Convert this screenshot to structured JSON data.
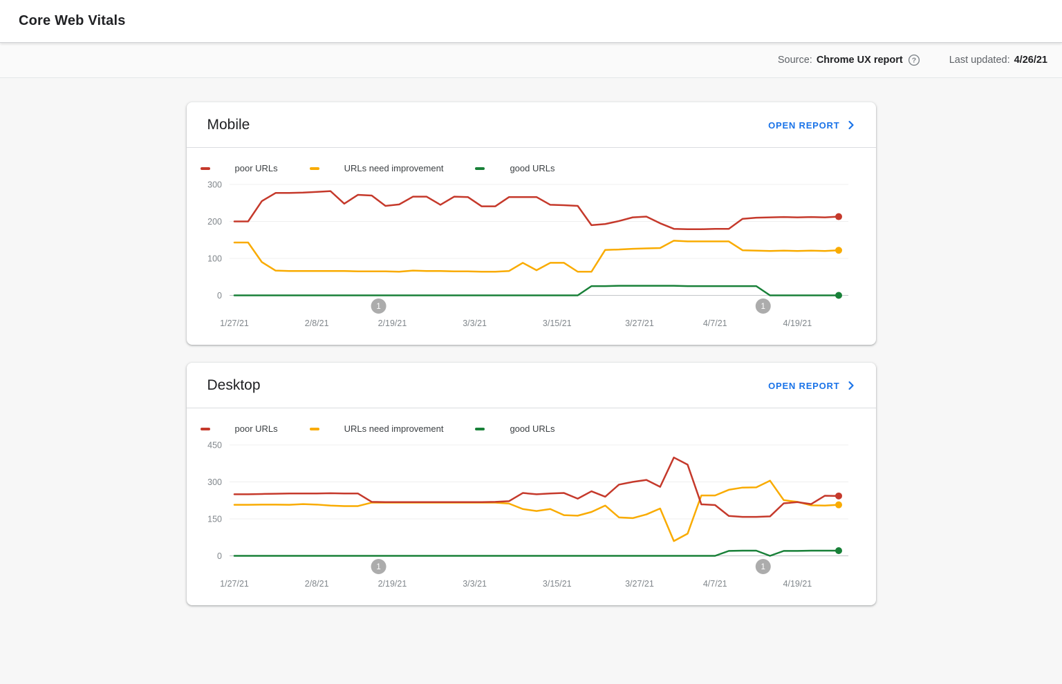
{
  "page": {
    "title": "Core Web Vitals"
  },
  "meta": {
    "source_label": "Source:",
    "source_value": "Chrome UX report",
    "help_icon": "question-circle-icon",
    "updated_label": "Last updated:",
    "updated_value": "4/26/21"
  },
  "colors": {
    "poor": "#c5392b",
    "needs_improvement": "#f9ab00",
    "good": "#188038",
    "link_blue": "#1a73e8",
    "axis_text": "#80868b",
    "grid_faint": "#efefef",
    "zero_line": "#c2c5c9",
    "annotation_gray": "#9e9e9e"
  },
  "legend": {
    "items": [
      {
        "label": "poor URLs",
        "color": "#c5392b"
      },
      {
        "label": "URLs need improvement",
        "color": "#f9ab00"
      },
      {
        "label": "good URLs",
        "color": "#188038"
      }
    ]
  },
  "cards": [
    {
      "title": "Mobile",
      "action_label": "OPEN REPORT"
    },
    {
      "title": "Desktop",
      "action_label": "OPEN REPORT"
    }
  ],
  "chart_data": [
    {
      "type": "line",
      "device": "Mobile",
      "ylim": [
        0,
        300
      ],
      "y_ticks": [
        0,
        100,
        200,
        300
      ],
      "x_tick_labels": [
        "1/27/21",
        "2/8/21",
        "2/19/21",
        "3/3/21",
        "3/15/21",
        "3/27/21",
        "4/7/21",
        "4/19/21"
      ],
      "x_tick_days": [
        0,
        12,
        23,
        35,
        47,
        59,
        70,
        82
      ],
      "sample_days": [
        0,
        2,
        4,
        6,
        8,
        10,
        12,
        14,
        16,
        18,
        20,
        22,
        24,
        26,
        28,
        30,
        32,
        34,
        36,
        38,
        40,
        42,
        44,
        46,
        48,
        50,
        52,
        54,
        56,
        58,
        60,
        62,
        64,
        66,
        68,
        70,
        72,
        74,
        76,
        78,
        80,
        82,
        84,
        86,
        88
      ],
      "sample_dates": [
        "1/27/21",
        "1/29/21",
        "1/31/21",
        "2/2/21",
        "2/4/21",
        "2/6/21",
        "2/8/21",
        "2/10/21",
        "2/12/21",
        "2/14/21",
        "2/16/21",
        "2/18/21",
        "2/20/21",
        "2/22/21",
        "2/24/21",
        "2/26/21",
        "2/28/21",
        "3/2/21",
        "3/4/21",
        "3/6/21",
        "3/8/21",
        "3/10/21",
        "3/12/21",
        "3/14/21",
        "3/16/21",
        "3/18/21",
        "3/20/21",
        "3/22/21",
        "3/24/21",
        "3/26/21",
        "3/28/21",
        "3/30/21",
        "4/1/21",
        "4/3/21",
        "4/5/21",
        "4/7/21",
        "4/9/21",
        "4/11/21",
        "4/13/21",
        "4/15/21",
        "4/17/21",
        "4/19/21",
        "4/21/21",
        "4/23/21",
        "4/25/21"
      ],
      "series": [
        {
          "name": "poor URLs",
          "color": "#c5392b",
          "values": [
            200,
            200,
            255,
            277,
            277,
            278,
            280,
            282,
            248,
            272,
            270,
            242,
            246,
            267,
            267,
            245,
            267,
            266,
            241,
            241,
            266,
            266,
            266,
            245,
            244,
            242,
            190,
            193,
            201,
            211,
            213,
            195,
            180,
            179,
            179,
            180,
            180,
            207,
            210,
            211,
            212,
            211,
            212,
            211,
            213
          ]
        },
        {
          "name": "URLs need improvement",
          "color": "#f9ab00",
          "values": [
            143,
            143,
            90,
            67,
            66,
            66,
            66,
            66,
            66,
            65,
            65,
            65,
            64,
            67,
            66,
            66,
            65,
            65,
            64,
            64,
            66,
            88,
            68,
            88,
            88,
            64,
            64,
            123,
            124,
            126,
            127,
            128,
            148,
            146,
            146,
            146,
            146,
            122,
            121,
            120,
            121,
            120,
            121,
            120,
            122
          ]
        },
        {
          "name": "good URLs",
          "color": "#188038",
          "values": [
            0,
            0,
            0,
            0,
            0,
            0,
            0,
            0,
            0,
            0,
            0,
            0,
            0,
            0,
            0,
            0,
            0,
            0,
            0,
            0,
            0,
            0,
            0,
            0,
            0,
            0,
            25,
            25,
            26,
            26,
            26,
            26,
            26,
            25,
            25,
            25,
            25,
            25,
            25,
            0,
            0,
            0,
            0,
            0,
            0
          ]
        }
      ],
      "annotations": [
        {
          "label": "1",
          "day": 21
        },
        {
          "label": "1",
          "day": 77
        }
      ]
    },
    {
      "type": "line",
      "device": "Desktop",
      "ylim": [
        0,
        450
      ],
      "y_ticks": [
        0,
        150,
        300,
        450
      ],
      "x_tick_labels": [
        "1/27/21",
        "2/8/21",
        "2/19/21",
        "3/3/21",
        "3/15/21",
        "3/27/21",
        "4/7/21",
        "4/19/21"
      ],
      "x_tick_days": [
        0,
        12,
        23,
        35,
        47,
        59,
        70,
        82
      ],
      "sample_days": [
        0,
        2,
        4,
        6,
        8,
        10,
        12,
        14,
        16,
        18,
        20,
        22,
        24,
        26,
        28,
        30,
        32,
        34,
        36,
        38,
        40,
        42,
        44,
        46,
        48,
        50,
        52,
        54,
        56,
        58,
        60,
        62,
        64,
        66,
        68,
        70,
        72,
        74,
        76,
        78,
        80,
        82,
        84,
        86,
        88
      ],
      "sample_dates": [
        "1/27/21",
        "1/29/21",
        "1/31/21",
        "2/2/21",
        "2/4/21",
        "2/6/21",
        "2/8/21",
        "2/10/21",
        "2/12/21",
        "2/14/21",
        "2/16/21",
        "2/18/21",
        "2/20/21",
        "2/22/21",
        "2/24/21",
        "2/26/21",
        "2/28/21",
        "3/2/21",
        "3/4/21",
        "3/6/21",
        "3/8/21",
        "3/10/21",
        "3/12/21",
        "3/14/21",
        "3/16/21",
        "3/18/21",
        "3/20/21",
        "3/22/21",
        "3/24/21",
        "3/26/21",
        "3/28/21",
        "3/30/21",
        "4/1/21",
        "4/3/21",
        "4/5/21",
        "4/7/21",
        "4/9/21",
        "4/11/21",
        "4/13/21",
        "4/15/21",
        "4/17/21",
        "4/19/21",
        "4/21/21",
        "4/23/21",
        "4/25/21"
      ],
      "series": [
        {
          "name": "poor URLs",
          "color": "#c5392b",
          "values": [
            250,
            250,
            251,
            252,
            253,
            253,
            253,
            254,
            253,
            253,
            219,
            218,
            218,
            218,
            218,
            218,
            218,
            218,
            218,
            219,
            222,
            255,
            250,
            253,
            255,
            232,
            262,
            240,
            289,
            300,
            308,
            280,
            399,
            370,
            209,
            206,
            162,
            158,
            158,
            160,
            213,
            218,
            210,
            244,
            243
          ]
        },
        {
          "name": "URLs need improvement",
          "color": "#f9ab00",
          "values": [
            207,
            207,
            208,
            208,
            207,
            210,
            208,
            204,
            202,
            202,
            216,
            216,
            216,
            216,
            216,
            216,
            216,
            216,
            216,
            216,
            212,
            190,
            182,
            190,
            165,
            163,
            178,
            204,
            156,
            153,
            168,
            192,
            60,
            90,
            245,
            245,
            268,
            277,
            278,
            305,
            226,
            219,
            205,
            204,
            207
          ]
        },
        {
          "name": "good URLs",
          "color": "#188038",
          "values": [
            0,
            0,
            0,
            0,
            0,
            0,
            0,
            0,
            0,
            0,
            0,
            0,
            0,
            0,
            0,
            0,
            0,
            0,
            0,
            0,
            0,
            0,
            0,
            0,
            0,
            0,
            0,
            0,
            0,
            0,
            0,
            0,
            0,
            0,
            0,
            0,
            20,
            21,
            21,
            0,
            20,
            20,
            21,
            21,
            21
          ]
        }
      ],
      "annotations": [
        {
          "label": "1",
          "day": 21
        },
        {
          "label": "1",
          "day": 77
        }
      ]
    }
  ]
}
